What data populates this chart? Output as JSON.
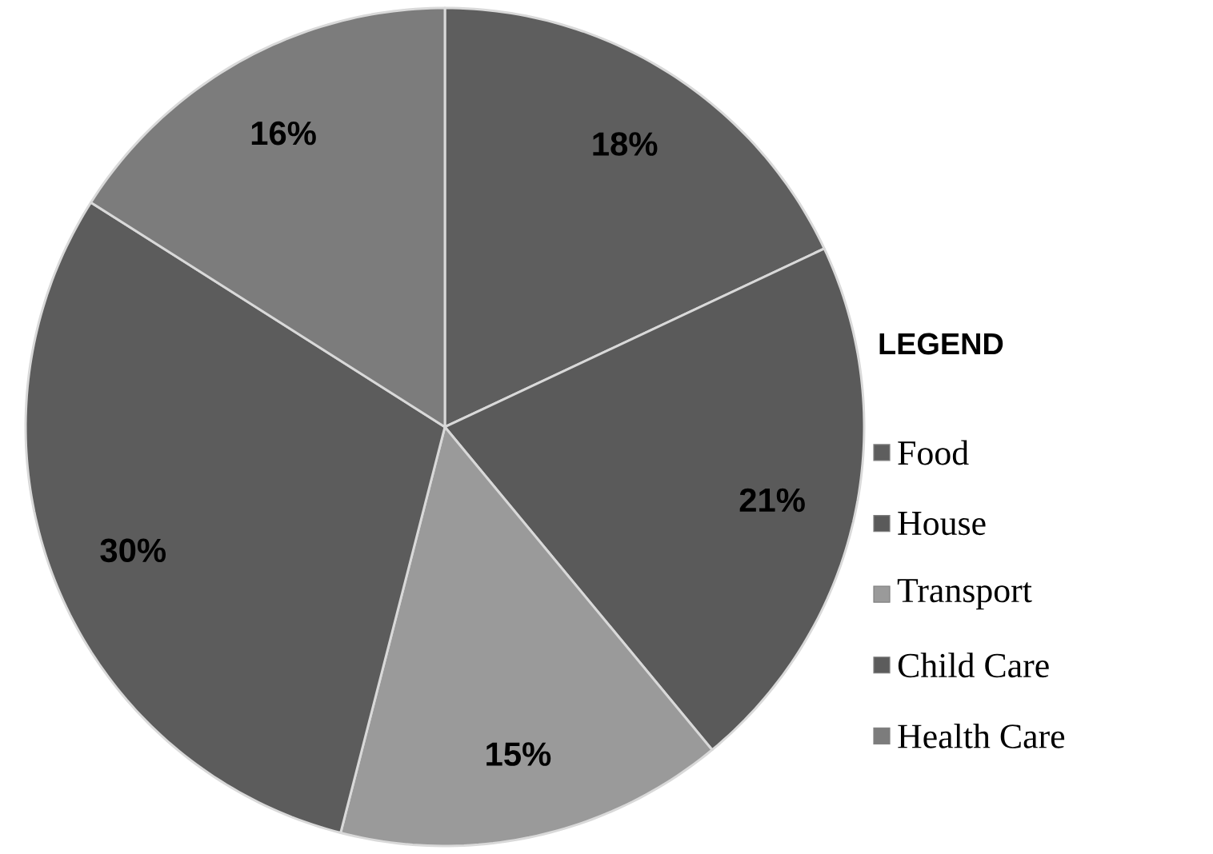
{
  "chart_data": {
    "type": "pie",
    "legend_title": "LEGEND",
    "legend": "right",
    "categories": [
      "Food",
      "House",
      "Transport",
      "Child Care",
      "Health Care"
    ],
    "values": [
      18,
      21,
      15,
      30,
      16
    ],
    "value_labels": [
      "18%",
      "21%",
      "15%",
      "30%",
      "16%"
    ],
    "colors": [
      "#5e5e5e",
      "#5a5a5a",
      "#9a9a9a",
      "#5c5c5c",
      "#7c7c7c"
    ]
  }
}
